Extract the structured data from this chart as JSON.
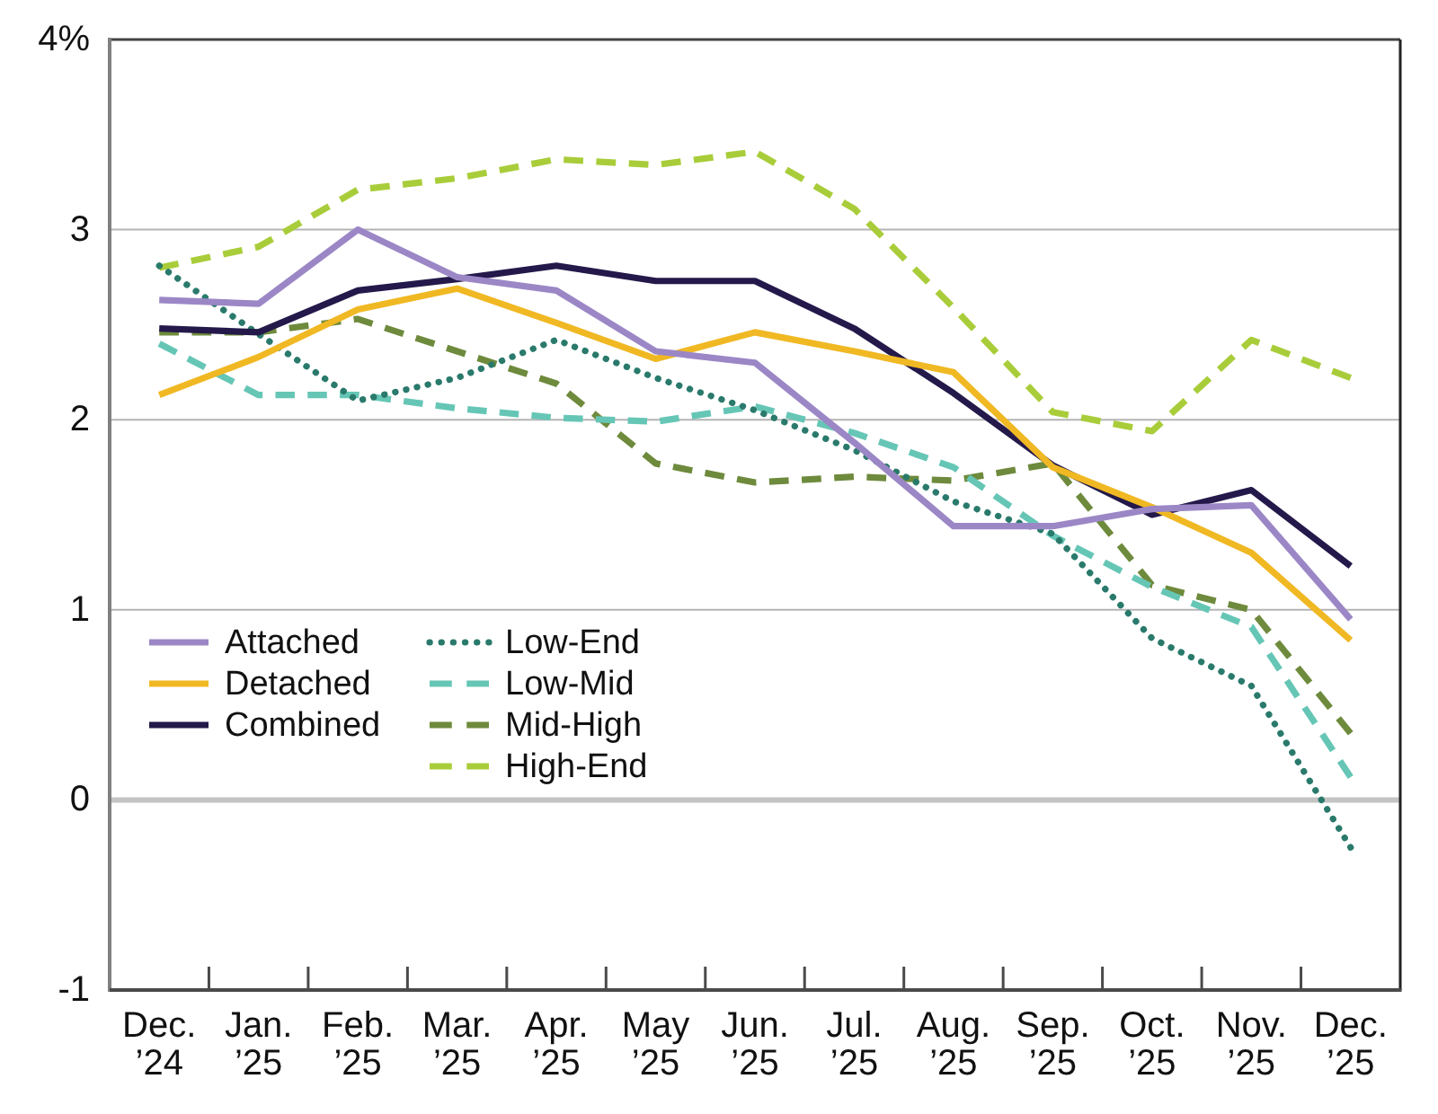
{
  "chart_data": {
    "type": "line",
    "categories": [
      "Dec.\n’24",
      "Jan.\n’25",
      "Feb.\n’25",
      "Mar.\n’25",
      "Apr.\n’25",
      "May\n’25",
      "Jun.\n’25",
      "Jul.\n’25",
      "Aug.\n’25",
      "Sep.\n’25",
      "Oct.\n’25",
      "Nov.\n’25",
      "Dec.\n’25"
    ],
    "ylim": [
      -1,
      4
    ],
    "yticks": [
      -1,
      0,
      1,
      2,
      3,
      {
        "value": 4,
        "label": "4%"
      }
    ],
    "grid": "y",
    "legend": "bottom left",
    "ref_lines": [
      {
        "axis": "y",
        "value": 0,
        "color": "#c4c4c4"
      }
    ],
    "series": [
      {
        "name": "Attached",
        "color": "#9b87c6",
        "line_style": "solid",
        "values": [
          2.63,
          2.61,
          3.0,
          2.75,
          2.68,
          2.36,
          2.3,
          1.88,
          1.44,
          1.44,
          1.53,
          1.55,
          0.95
        ]
      },
      {
        "name": "Detached",
        "color": "#f0b823",
        "line_style": "solid",
        "values": [
          2.13,
          2.33,
          2.58,
          2.69,
          2.51,
          2.32,
          2.46,
          2.36,
          2.25,
          1.75,
          1.54,
          1.3,
          0.84
        ]
      },
      {
        "name": "Combined",
        "color": "#24194a",
        "line_style": "solid",
        "values": [
          2.48,
          2.46,
          2.68,
          2.74,
          2.81,
          2.73,
          2.73,
          2.48,
          2.14,
          1.76,
          1.5,
          1.63,
          1.23
        ]
      },
      {
        "name": "Low-End",
        "color": "#2a7a6c",
        "line_style": "dotted",
        "values": [
          2.81,
          2.45,
          2.1,
          2.22,
          2.42,
          2.22,
          2.05,
          1.84,
          1.57,
          1.4,
          0.85,
          0.6,
          -0.25
        ]
      },
      {
        "name": "Low-Mid",
        "color": "#66c6b6",
        "line_style": "dashed",
        "values": [
          2.4,
          2.13,
          2.13,
          2.06,
          2.01,
          1.99,
          2.07,
          1.93,
          1.75,
          1.39,
          1.12,
          0.91,
          0.12
        ]
      },
      {
        "name": "Mid-High",
        "color": "#6e8a3c",
        "line_style": "dashed",
        "values": [
          2.46,
          2.46,
          2.53,
          2.36,
          2.19,
          1.77,
          1.67,
          1.7,
          1.68,
          1.77,
          1.13,
          1.0,
          0.35
        ]
      },
      {
        "name": "High-End",
        "color": "#a9cd3a",
        "line_style": "dashed",
        "values": [
          2.8,
          2.91,
          3.21,
          3.27,
          3.37,
          3.34,
          3.41,
          3.11,
          2.59,
          2.04,
          1.94,
          2.42,
          2.22
        ]
      }
    ]
  }
}
